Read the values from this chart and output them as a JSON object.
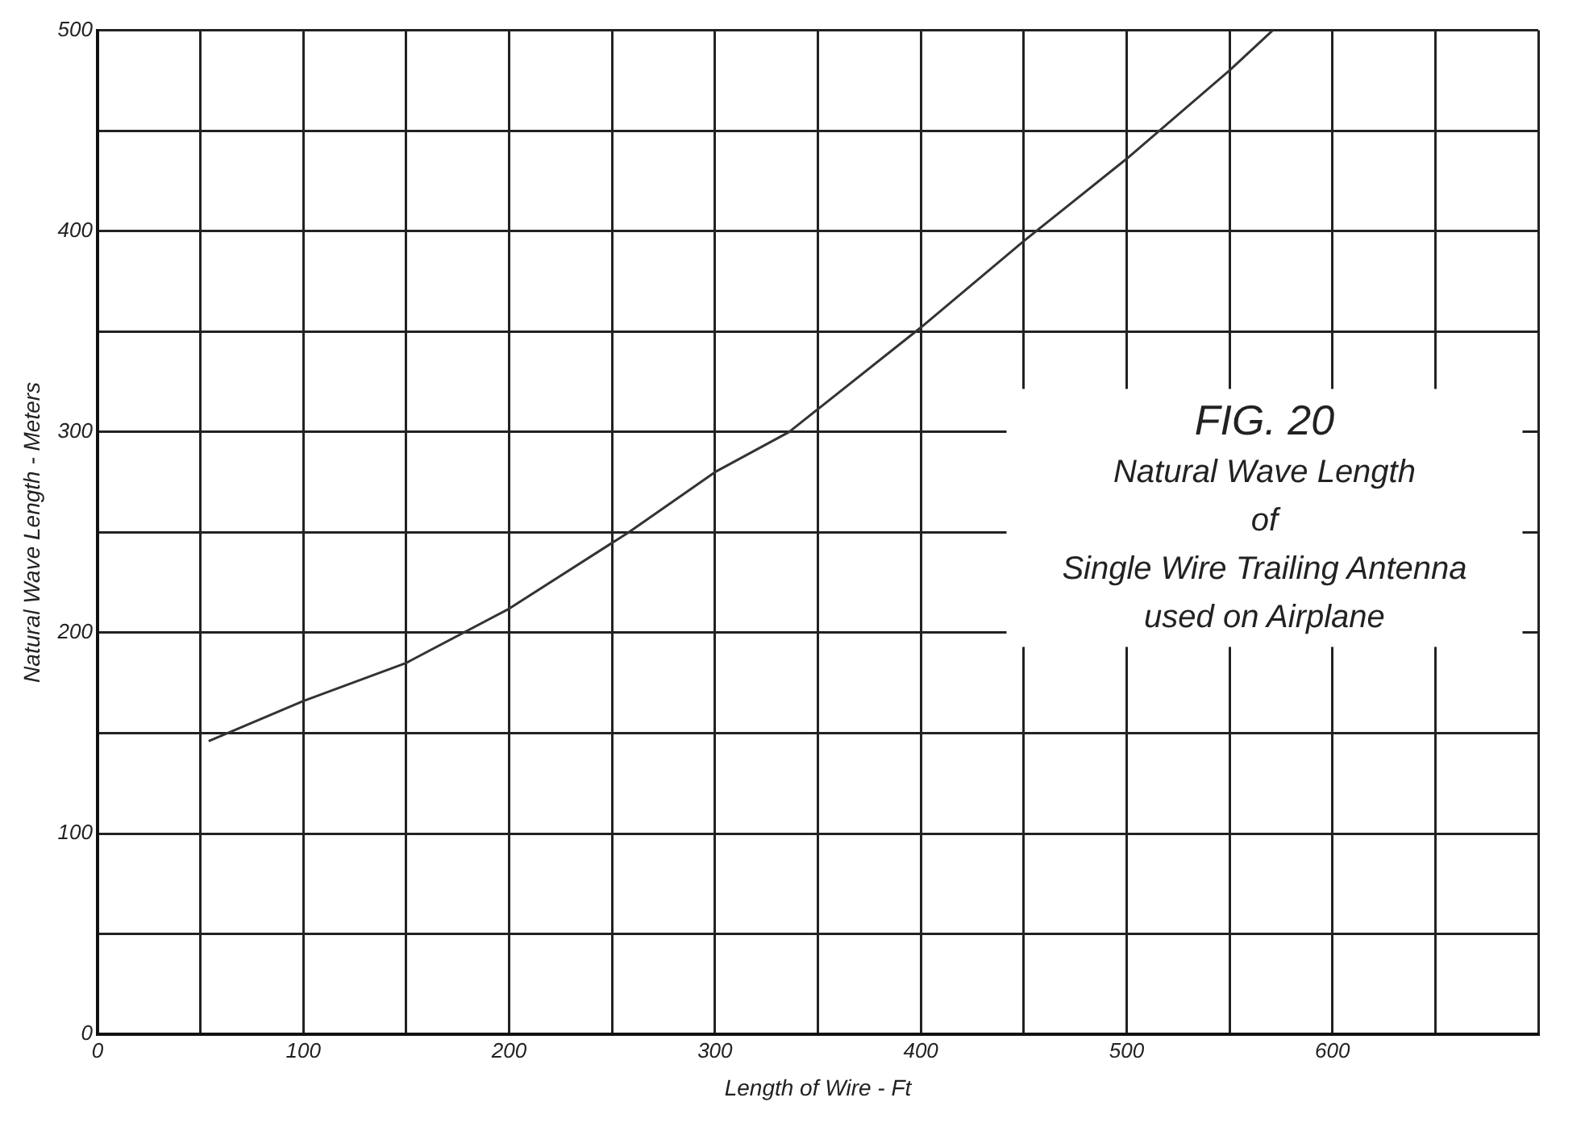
{
  "chart_data": {
    "type": "line",
    "title": "FIG. 20",
    "annotations": [
      "Natural Wave Length",
      "of",
      "Single Wire Trailing Antenna",
      "used on Airplane"
    ],
    "xlabel": "Length of Wire - Ft",
    "ylabel": "Natural Wave Length - Meters",
    "series": [
      {
        "color": "#333333",
        "x": [
          54,
          100,
          150,
          200,
          258,
          300,
          336,
          400,
          450,
          500,
          550,
          571
        ],
        "values": [
          146,
          166,
          185,
          212,
          250,
          280,
          300,
          352,
          395,
          436,
          480,
          500
        ]
      }
    ],
    "xlim": [
      0,
      700
    ],
    "xticks": [
      0,
      {
        "value": 50,
        "label": null
      },
      100,
      {
        "value": 150,
        "label": null
      },
      200,
      {
        "value": 250,
        "label": null
      },
      300,
      {
        "value": 350,
        "label": null
      },
      400,
      {
        "value": 450,
        "label": null
      },
      500,
      {
        "value": 550,
        "label": null
      },
      600,
      {
        "value": 650,
        "label": null
      },
      {
        "value": 700,
        "label": null
      }
    ],
    "ylim": [
      0,
      500
    ],
    "yticks": [
      0,
      {
        "value": 50,
        "label": null
      },
      100,
      {
        "value": 150,
        "label": null
      },
      200,
      {
        "value": 250,
        "label": null
      },
      300,
      {
        "value": 350,
        "label": null
      },
      400,
      {
        "value": 450,
        "label": null
      },
      500
    ],
    "grid": true
  }
}
